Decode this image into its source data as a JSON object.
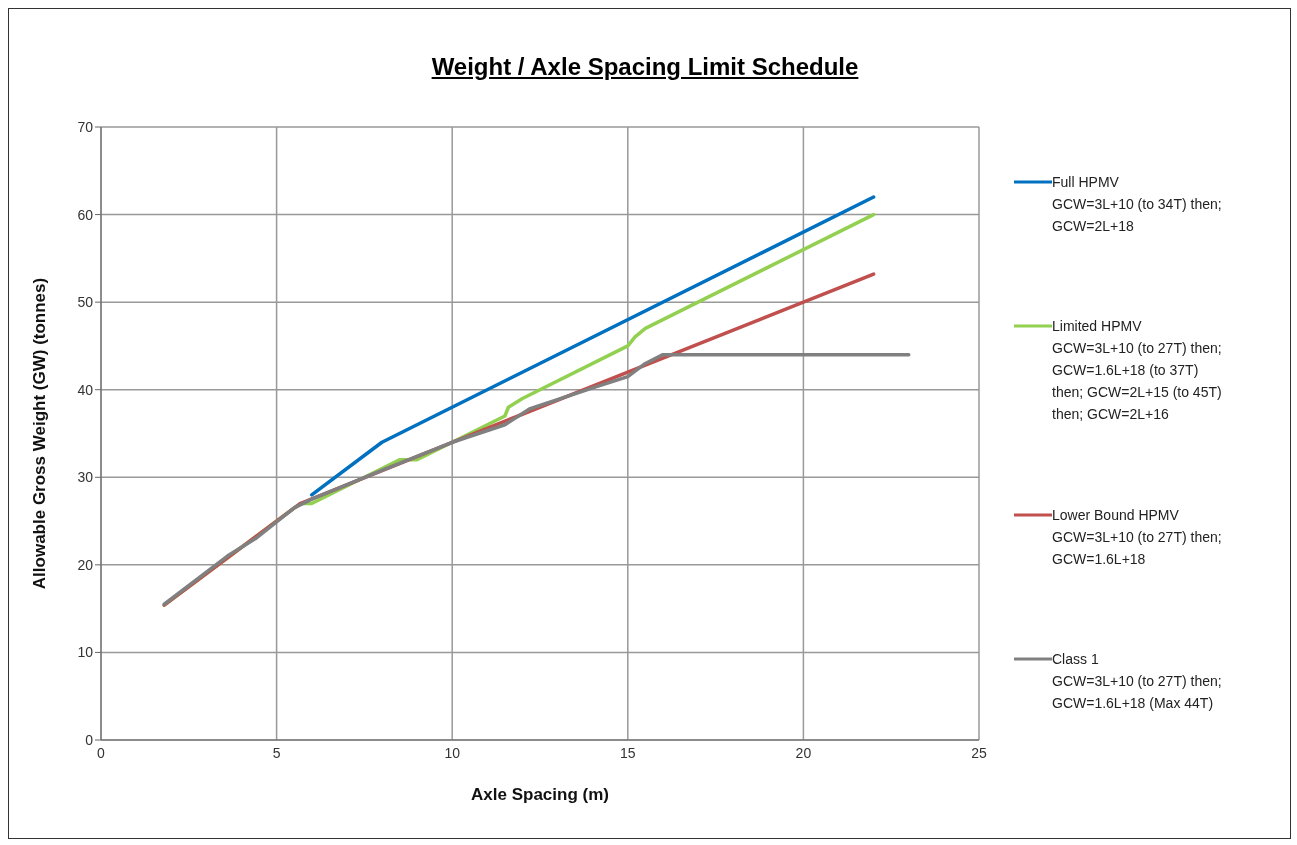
{
  "chart_data": {
    "type": "line",
    "title": "Weight / Axle Spacing Limit Schedule",
    "xlabel": "Axle Spacing (m)",
    "ylabel": "Allowable Gross Weight (GW) (tonnes)",
    "xlim": [
      0,
      25
    ],
    "xticks": [
      0,
      5,
      10,
      15,
      20,
      25
    ],
    "ylim": [
      0,
      70
    ],
    "yticks": [
      0,
      10,
      20,
      30,
      40,
      50,
      60,
      70
    ],
    "grid": true,
    "legend": "right",
    "marker": "none",
    "line_style": "solid",
    "series": [
      {
        "name": "Full HPMV\nGCW=3L+10 (to 34T) then;\nGCW=2L+18",
        "color": "#0070c0",
        "x": [
          6,
          8,
          22
        ],
        "values": [
          28,
          34,
          62
        ]
      },
      {
        "name": "Limited HPMV\nGCW=3L+10 (to 27T) then;\nGCW=1.6L+18 (to 37T)\nthen; GCW=2L+15 (to 45T)\nthen; GCW=2L+16",
        "color": "#92d050",
        "x": [
          1.8,
          5.67,
          6,
          8.5,
          9,
          11.5,
          11.6,
          12,
          15,
          15.2,
          15.5,
          22
        ],
        "values": [
          15.4,
          27,
          27,
          32,
          32,
          37,
          38,
          39,
          45,
          46,
          47,
          60
        ]
      },
      {
        "name": "Lower Bound HPMV\nGCW=3L+10 (to 27T) then;\nGCW=1.6L+18",
        "color": "#c0504d",
        "x": [
          1.8,
          5.67,
          10,
          15,
          22
        ],
        "values": [
          15.4,
          27,
          34,
          42,
          53.2
        ]
      },
      {
        "name": "Class 1\nGCW=3L+10 (to 27T) then;\nGCW=1.6L+18 (Max 44T)",
        "color": "#808080",
        "x": [
          1.8,
          3.6,
          4.4,
          5.5,
          6,
          8,
          10,
          11.5,
          12.2,
          14,
          15,
          15.5,
          16,
          23
        ],
        "values": [
          15.5,
          21,
          23,
          26.5,
          27.5,
          30.8,
          34,
          36,
          37.8,
          40.2,
          41.5,
          43,
          44,
          44
        ]
      }
    ]
  }
}
